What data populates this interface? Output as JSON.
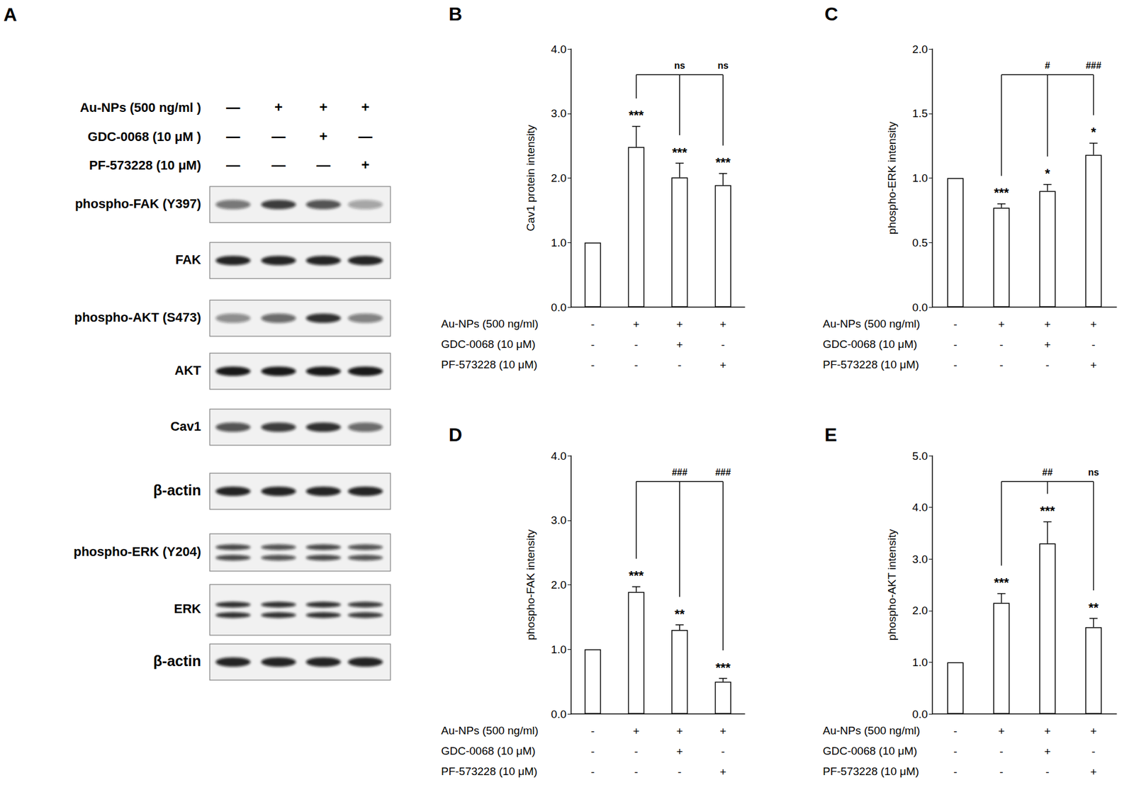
{
  "blot": {
    "panel": "A",
    "treatments": [
      {
        "label": "Au-NPs (500 ng/ml )",
        "signs": [
          "—",
          "+",
          "+",
          "+"
        ]
      },
      {
        "label": "GDC-0068 (10 μM )",
        "signs": [
          "—",
          "—",
          "+",
          "—"
        ]
      },
      {
        "label": "PF-573228 (10 μM)",
        "signs": [
          "—",
          "—",
          "—",
          "+"
        ]
      }
    ],
    "rows": [
      {
        "label": "phospho-FAK (Y397)",
        "intensity": [
          0.55,
          0.8,
          0.7,
          0.35
        ]
      },
      {
        "label": "FAK",
        "intensity": [
          0.9,
          0.9,
          0.9,
          0.9
        ]
      },
      {
        "label": "phospho-AKT (S473)",
        "intensity": [
          0.45,
          0.6,
          0.85,
          0.5
        ]
      },
      {
        "label": "AKT",
        "intensity": [
          0.95,
          0.95,
          0.95,
          0.95
        ]
      },
      {
        "label": "Cav1",
        "intensity": [
          0.7,
          0.8,
          0.85,
          0.6
        ]
      },
      {
        "label": "β-actin",
        "intensity": [
          0.9,
          0.9,
          0.9,
          0.9
        ]
      },
      {
        "label": "phospho-ERK (Y204)",
        "doublet": true,
        "intensity": [
          0.75,
          0.7,
          0.75,
          0.7
        ]
      },
      {
        "label": "ERK",
        "doublet": true,
        "intensity": [
          0.85,
          0.85,
          0.85,
          0.8
        ]
      },
      {
        "label": "β-actin",
        "intensity": [
          0.9,
          0.9,
          0.9,
          0.9
        ]
      }
    ]
  },
  "chart_data": [
    {
      "type": "bar",
      "panel": "B",
      "ylabel": "Cav1 protein intensity",
      "categories": [
        null,
        null,
        null,
        null
      ],
      "values": [
        1.0,
        2.48,
        2.01,
        1.89
      ],
      "errors": [
        0,
        0.32,
        0.22,
        0.18
      ],
      "significance": [
        null,
        "***",
        "***",
        "***"
      ],
      "comparison": {
        "reference": 1,
        "targets": [
          2,
          3
        ],
        "labels": [
          "ns",
          "ns"
        ]
      },
      "treatments": [
        {
          "label": "Au-NPs (500 ng/ml)",
          "signs": [
            "-",
            "+",
            "+",
            "+"
          ]
        },
        {
          "label": "GDC-0068 (10 μM)",
          "signs": [
            "-",
            "-",
            "+",
            "-"
          ]
        },
        {
          "label": "PF-573228 (10 μM)",
          "signs": [
            "-",
            "-",
            "-",
            "+"
          ]
        }
      ],
      "color": "#ffffff",
      "ylim": [
        0,
        4
      ],
      "yticks": [
        {
          "value": 0,
          "label": "0.0"
        },
        {
          "value": 1,
          "label": "1.0"
        },
        {
          "value": 2,
          "label": "2.0"
        },
        {
          "value": 3,
          "label": "3.0"
        },
        {
          "value": 4,
          "label": "4.0"
        }
      ],
      "grid": false
    },
    {
      "type": "bar",
      "panel": "C",
      "ylabel": "phospho-ERK intensity",
      "categories": [
        null,
        null,
        null,
        null
      ],
      "values": [
        1.0,
        0.77,
        0.9,
        1.18
      ],
      "errors": [
        0,
        0.03,
        0.05,
        0.09
      ],
      "significance": [
        null,
        "***",
        "*",
        "*"
      ],
      "comparison": {
        "reference": 1,
        "targets": [
          2,
          3
        ],
        "labels": [
          "#",
          "###"
        ]
      },
      "treatments": [
        {
          "label": "Au-NPs (500 ng/ml)",
          "signs": [
            "-",
            "+",
            "+",
            "+"
          ]
        },
        {
          "label": "GDC-0068 (10 μM)",
          "signs": [
            "-",
            "-",
            "+",
            "-"
          ]
        },
        {
          "label": "PF-573228 (10 μM)",
          "signs": [
            "-",
            "-",
            "-",
            "+"
          ]
        }
      ],
      "color": "#ffffff",
      "ylim": [
        0,
        2
      ],
      "yticks": [
        {
          "value": 0,
          "label": "0.0"
        },
        0.5,
        {
          "value": 1,
          "label": "1.0"
        },
        1.5,
        {
          "value": 2,
          "label": "2.0"
        }
      ],
      "grid": false
    },
    {
      "type": "bar",
      "panel": "D",
      "ylabel": "phospho-FAK intensity",
      "categories": [
        null,
        null,
        null,
        null
      ],
      "values": [
        1.0,
        1.89,
        1.3,
        0.5
      ],
      "errors": [
        0,
        0.08,
        0.08,
        0.05
      ],
      "significance": [
        null,
        "***",
        "**",
        "***"
      ],
      "comparison": {
        "reference": 1,
        "targets": [
          2,
          3
        ],
        "labels": [
          "###",
          "###"
        ]
      },
      "treatments": [
        {
          "label": "Au-NPs (500 ng/ml)",
          "signs": [
            "-",
            "+",
            "+",
            "+"
          ]
        },
        {
          "label": "GDC-0068 (10 μM)",
          "signs": [
            "-",
            "-",
            "+",
            "-"
          ]
        },
        {
          "label": "PF-573228 (10 μM)",
          "signs": [
            "-",
            "-",
            "-",
            "+"
          ]
        }
      ],
      "color": "#ffffff",
      "ylim": [
        0,
        4
      ],
      "yticks": [
        {
          "value": 0,
          "label": "0.0"
        },
        {
          "value": 1,
          "label": "1.0"
        },
        {
          "value": 2,
          "label": "2.0"
        },
        {
          "value": 3,
          "label": "3.0"
        },
        {
          "value": 4,
          "label": "4.0"
        }
      ],
      "grid": false
    },
    {
      "type": "bar",
      "panel": "E",
      "ylabel": "phospho-AKT intensity",
      "categories": [
        null,
        null,
        null,
        null
      ],
      "values": [
        1.0,
        2.15,
        3.3,
        1.68
      ],
      "errors": [
        0,
        0.18,
        0.42,
        0.17
      ],
      "significance": [
        null,
        "***",
        "***",
        "**"
      ],
      "comparison": {
        "reference": 1,
        "targets": [
          2,
          3
        ],
        "labels": [
          "##",
          "ns"
        ]
      },
      "treatments": [
        {
          "label": "Au-NPs (500 ng/ml)",
          "signs": [
            "-",
            "+",
            "+",
            "+"
          ]
        },
        {
          "label": "GDC-0068 (10 μM)",
          "signs": [
            "-",
            "-",
            "+",
            "-"
          ]
        },
        {
          "label": "PF-573228 (10 μM)",
          "signs": [
            "-",
            "-",
            "-",
            "+"
          ]
        }
      ],
      "color": "#ffffff",
      "ylim": [
        0,
        5
      ],
      "yticks": [
        {
          "value": 0,
          "label": "0.0"
        },
        {
          "value": 1,
          "label": "1.0"
        },
        {
          "value": 2,
          "label": "2.0"
        },
        {
          "value": 3,
          "label": "3.0"
        },
        {
          "value": 4,
          "label": "4.0"
        },
        {
          "value": 5,
          "label": "5.0"
        }
      ],
      "grid": false
    }
  ]
}
